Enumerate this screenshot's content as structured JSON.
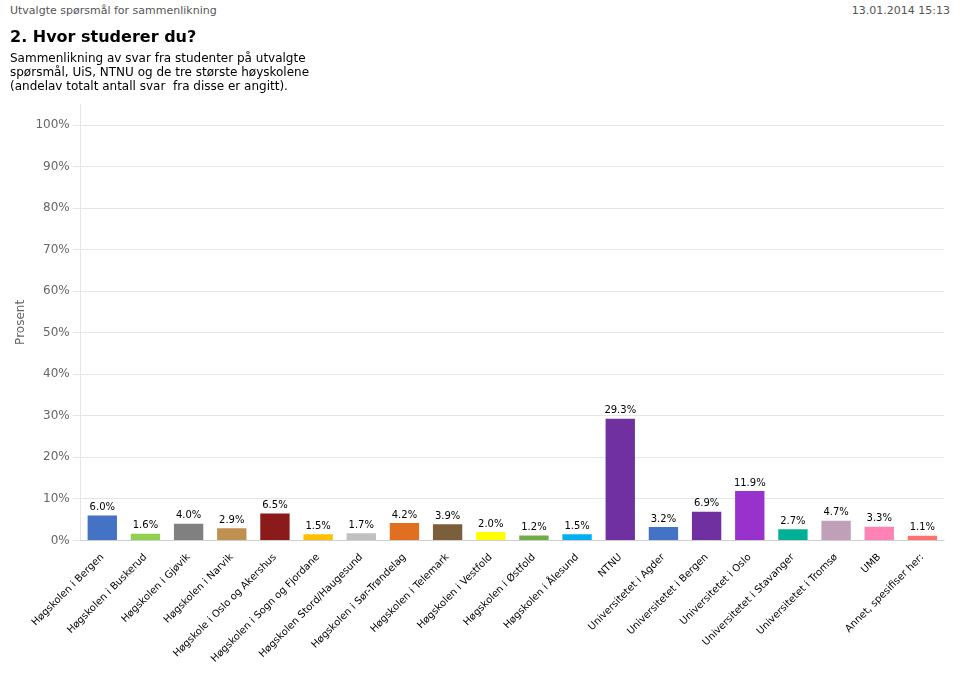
{
  "chart_data": {
    "type": "bar",
    "title": "2. Hvor studerer du?",
    "subtitle": "Sammenlikning av svar fra studenter på utvalgte\nspørsmål, UiS, NTNU og de tre største høyskolene\n(andelav totalt antall svar  fra disse er angitt).",
    "annotations": [
      "Utvalgte spørsmål for sammenlikning",
      "13.01.2014 15:13"
    ],
    "ylabel": "Prosent",
    "categories": [
      "Høgskolen i Bergen",
      "Høgskolen i Buskerud",
      "Høgskolen i Gjøvik",
      "Høgskolen i Narvik",
      "Høgskole i Oslo og Akershus",
      "Høgskolen i Sogn og Fjordane",
      "Høgskolen Stord/Haugesund",
      "Høgskolen i Sør-Trøndelag",
      "Høgskolen i Telemark",
      "Høgskolen i Vestfold",
      "Høgskolen i Østfold",
      "Høgskolen i Ålesund",
      "NTNU",
      "Universitetet i Agder",
      "Universitetet i Bergen",
      "Universitetet i Oslo",
      "Universitetet i Stavanger",
      "Universitetet i Tromsø",
      "UMB",
      "Annet, spesifiser her:"
    ],
    "values": [
      6.0,
      1.6,
      4.0,
      2.9,
      6.5,
      1.5,
      1.7,
      4.2,
      3.9,
      2.0,
      1.2,
      1.5,
      29.3,
      3.2,
      6.9,
      11.9,
      2.7,
      4.7,
      3.3,
      1.1
    ],
    "value_labels": [
      "6.0%",
      "1.6%",
      "4.0%",
      "2.9%",
      "6.5%",
      "1.5%",
      "1.7%",
      "4.2%",
      "3.9%",
      "2.0%",
      "1.2%",
      "1.5%",
      "29.3%",
      "3.2%",
      "6.9%",
      "11.9%",
      "2.7%",
      "4.7%",
      "3.3%",
      "1.1%"
    ],
    "colors": [
      "#4472C4",
      "#92D050",
      "#808080",
      "#C09050",
      "#8B1A1A",
      "#FFC000",
      "#C0C0C0",
      "#E07020",
      "#7B5E3A",
      "#FFFF00",
      "#70AD47",
      "#00B0F0",
      "#7030A0",
      "#4472C4",
      "#7030A0",
      "#9932CC",
      "#00B096",
      "#C0A0B8",
      "#FF82B4",
      "#FF7070"
    ],
    "ylim": [
      0,
      105
    ],
    "yticks": [
      {
        "value": 0,
        "label": "0%"
      },
      {
        "value": 10,
        "label": "10%"
      },
      {
        "value": 20,
        "label": "20%"
      },
      {
        "value": 30,
        "label": "30%"
      },
      {
        "value": 40,
        "label": "40%"
      },
      {
        "value": 50,
        "label": "50%"
      },
      {
        "value": 60,
        "label": "60%"
      },
      {
        "value": 70,
        "label": "70%"
      },
      {
        "value": 80,
        "label": "80%"
      },
      {
        "value": 90,
        "label": "90%"
      },
      {
        "value": 100,
        "label": "100%"
      }
    ],
    "grid": true,
    "data_labels": true
  }
}
